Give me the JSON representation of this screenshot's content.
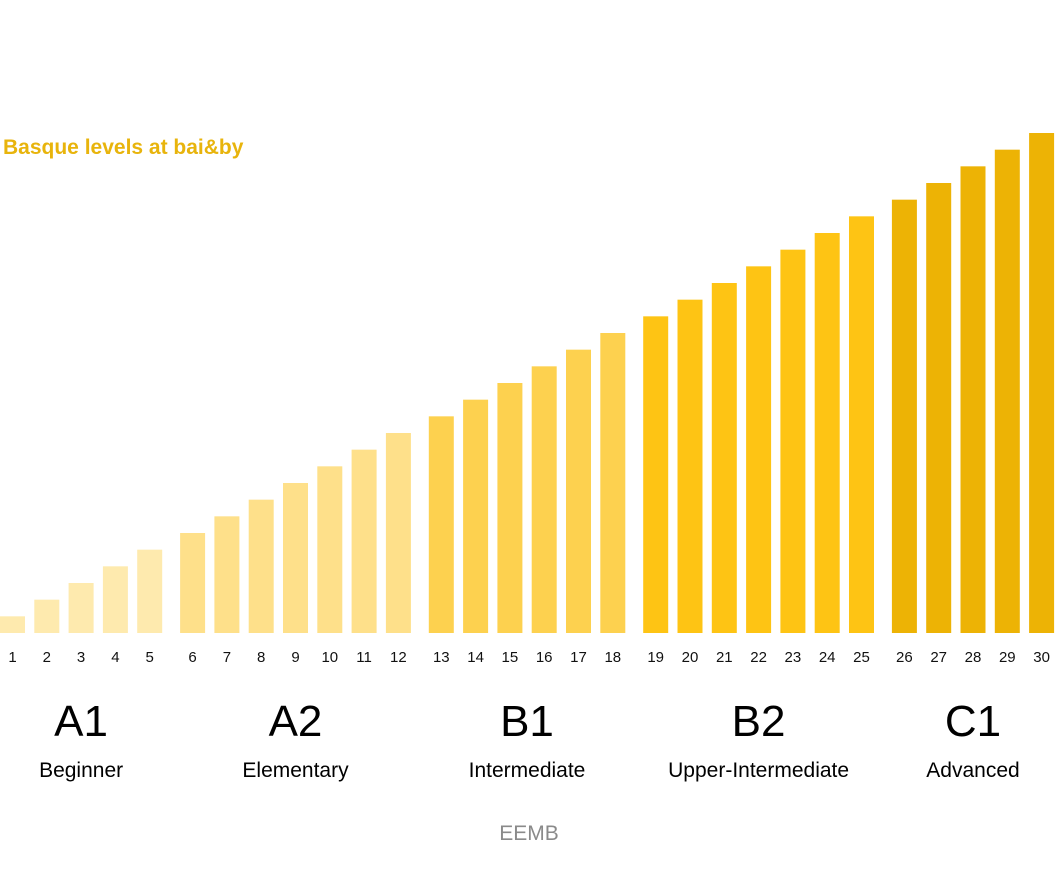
{
  "chart_data": {
    "type": "bar",
    "title": "Basque levels at bai&by",
    "title_color": "#E8B40C",
    "xlabel": "",
    "ylabel": "",
    "grid": false,
    "legend": "none",
    "ylim": [
      0,
      33
    ],
    "categories": [
      "1",
      "2",
      "3",
      "4",
      "5",
      "6",
      "7",
      "8",
      "9",
      "10",
      "11",
      "12",
      "13",
      "14",
      "15",
      "16",
      "17",
      "18",
      "19",
      "20",
      "21",
      "22",
      "23",
      "24",
      "25",
      "26",
      "27",
      "28",
      "29",
      "30"
    ],
    "values": [
      1,
      2,
      3,
      4,
      5,
      6,
      7,
      8,
      9,
      10,
      11,
      12,
      13,
      14,
      15,
      16,
      17,
      18,
      19,
      20,
      21,
      22,
      23,
      24,
      25,
      26,
      27,
      28,
      29,
      30
    ],
    "groups": [
      {
        "code": "A1",
        "label": "Beginner",
        "levels": [
          1,
          5
        ],
        "color": "#FEEAAE"
      },
      {
        "code": "A2",
        "label": "Elementary",
        "levels": [
          6,
          12
        ],
        "color": "#FEE08A"
      },
      {
        "code": "B1",
        "label": "Intermediate",
        "levels": [
          13,
          18
        ],
        "color": "#FDD14F"
      },
      {
        "code": "B2",
        "label": "Upper-Intermediate",
        "levels": [
          19,
          25
        ],
        "color": "#FEC414"
      },
      {
        "code": "C1",
        "label": "Advanced",
        "levels": [
          26,
          30
        ],
        "color": "#EDB305"
      }
    ]
  },
  "footer": {
    "text": "EEMB",
    "color": "#8a8a8a"
  }
}
